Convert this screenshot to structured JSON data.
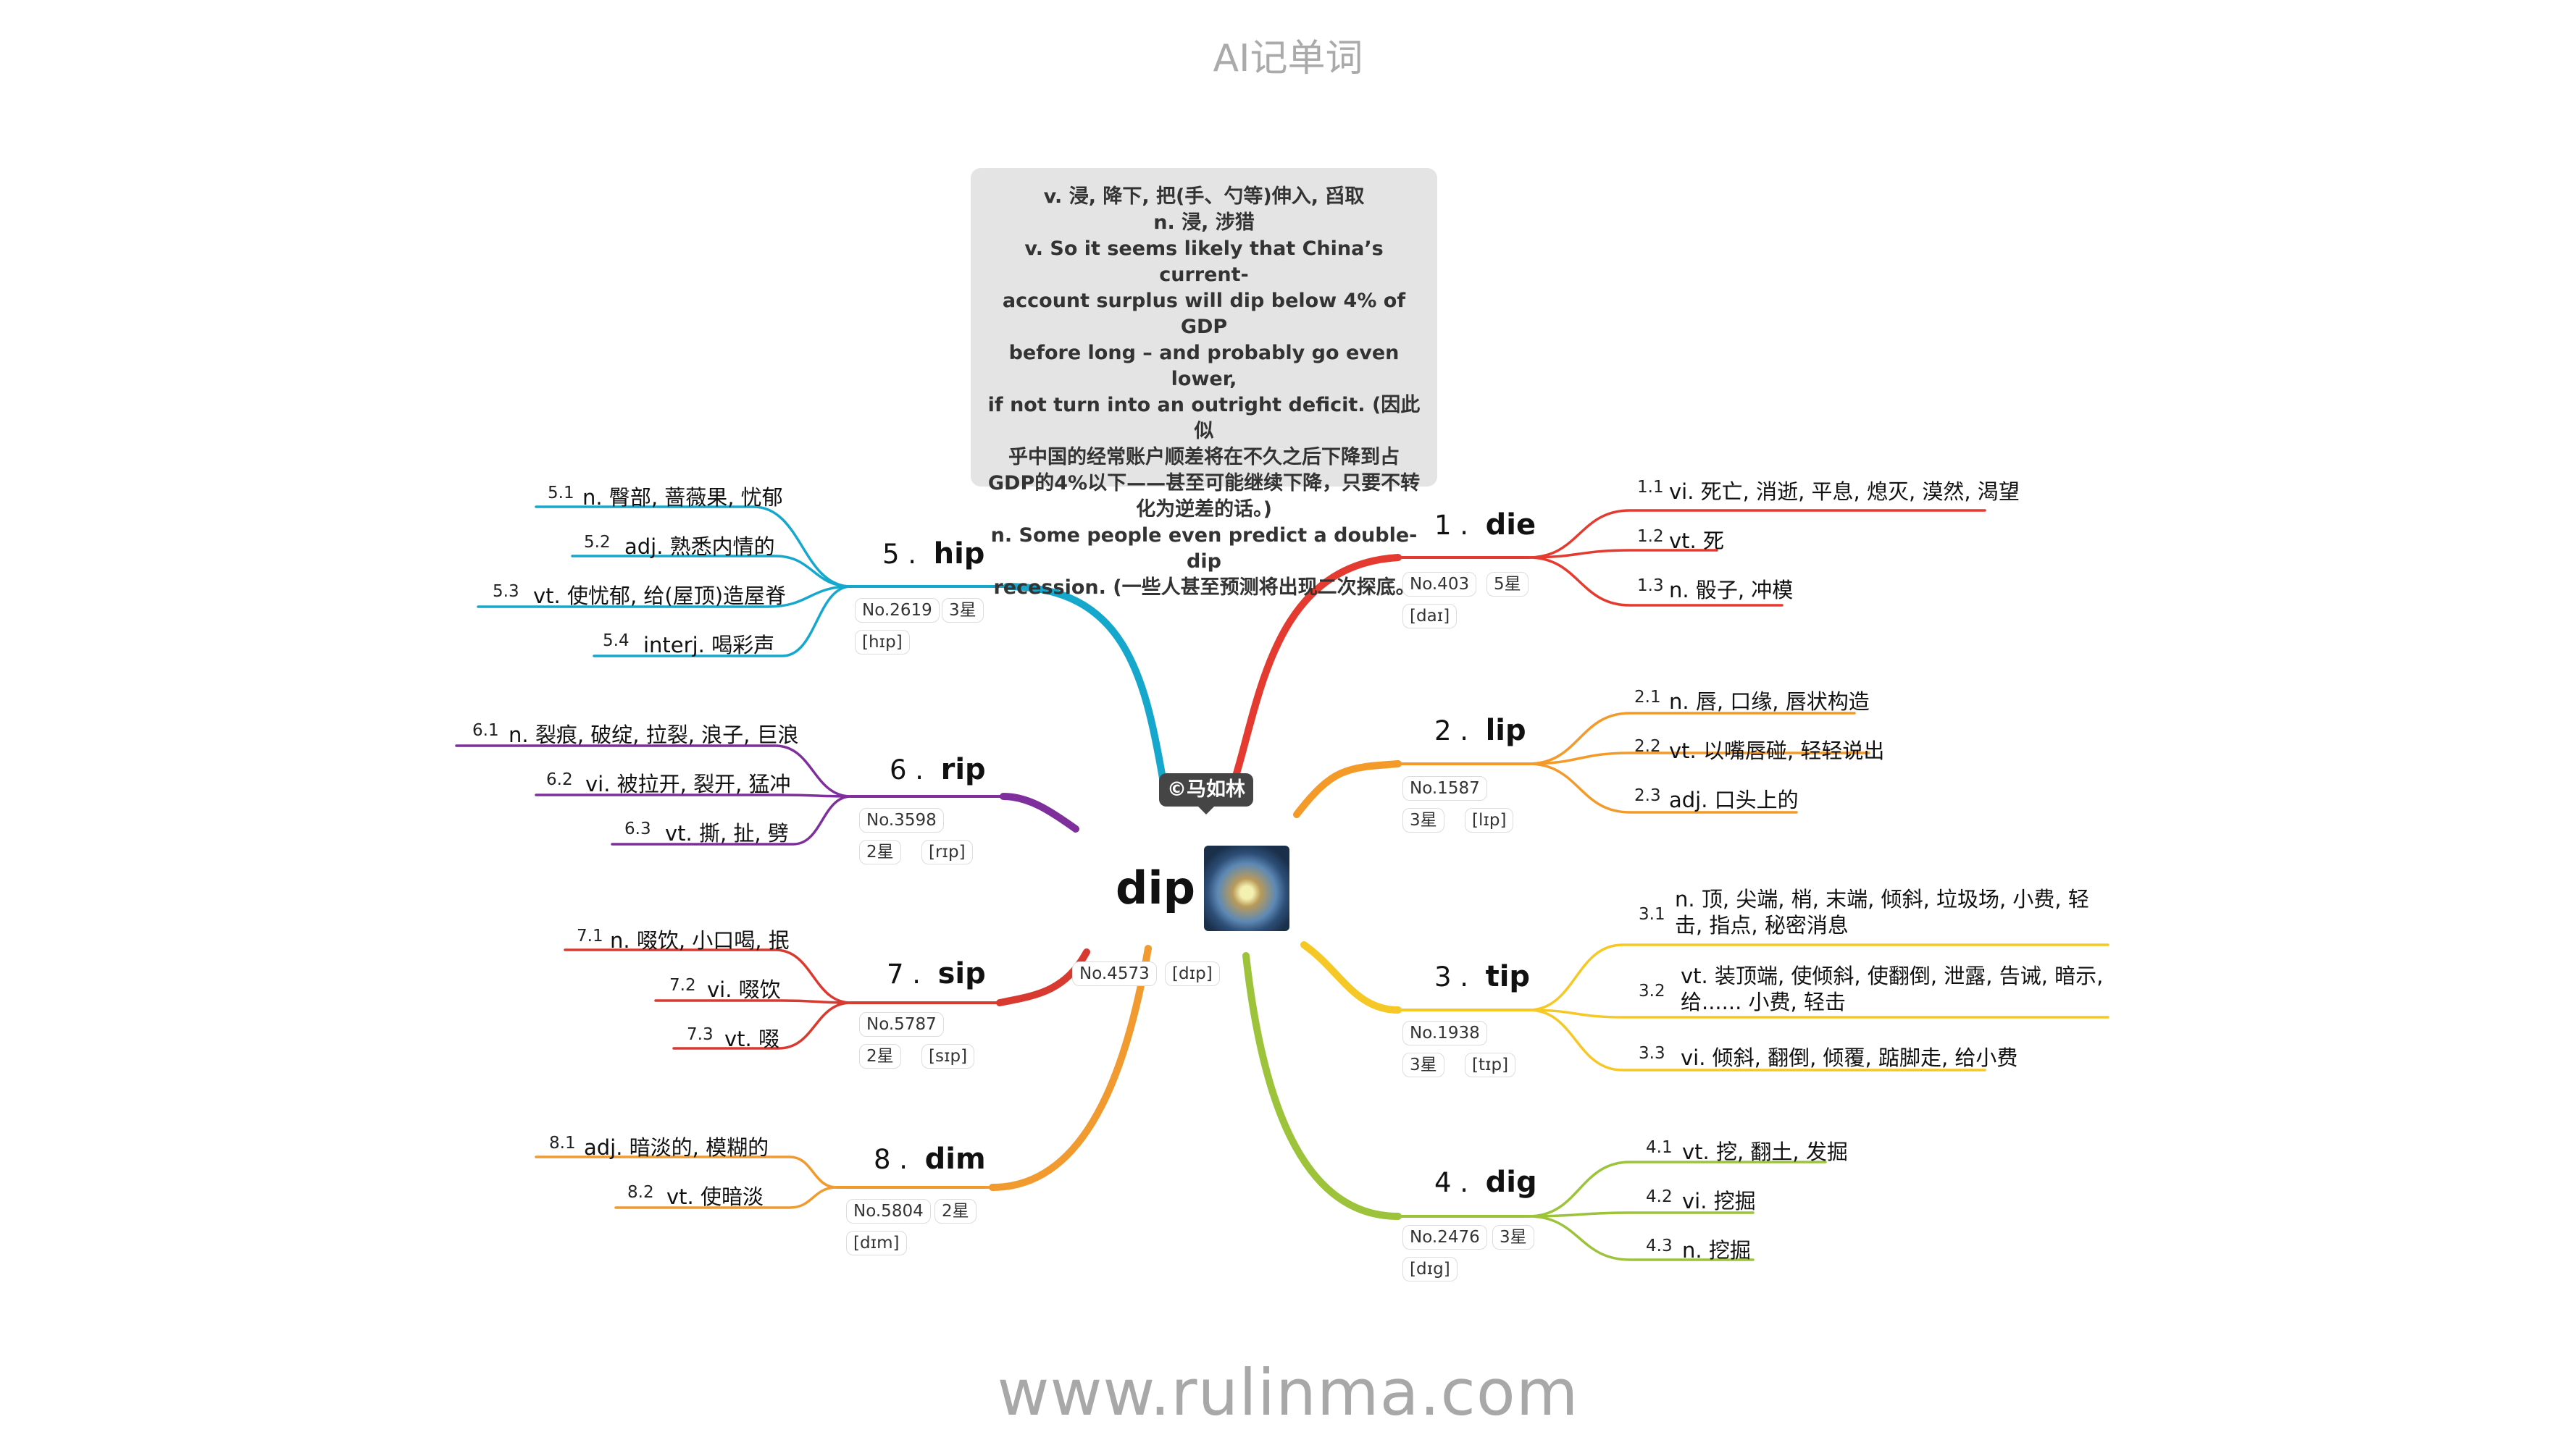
{
  "app_title": "AI记单词",
  "footer": "www.rulinma.com",
  "center": {
    "word": "dip",
    "author_badge": "©马如林",
    "no": "No.4573",
    "phonetic": "[dɪp]",
    "definition_lines": [
      "v. 浸, 降下, 把(手、勺等)伸入, 舀取",
      "n. 浸, 涉猎",
      "v. So it seems likely that China’s current-",
      "account surplus will dip below 4% of GDP",
      "before long – and probably go even lower,",
      "if not turn into an outright deficit. (因此似",
      "乎中国的经常账户顺差将在不久之后下降到占",
      "GDP的4%以下——甚至可能继续下降，只要不转",
      "化为逆差的话。)",
      "n. Some people even predict a double-dip",
      "recession. (一些人甚至预测将出现二次探底。)"
    ]
  },
  "branches": [
    {
      "index": "1",
      "word": "die",
      "no": "No.403",
      "stars": "5星",
      "phonetic": "[daɪ]",
      "color": "#e53a2f",
      "meanings": [
        {
          "num": "1.1",
          "text": "vi. 死亡, 消逝, 平息, 熄灭, 漠然, 渴望"
        },
        {
          "num": "1.2",
          "text": "vt. 死"
        },
        {
          "num": "1.3",
          "text": "n. 骰子, 冲模"
        }
      ]
    },
    {
      "index": "2",
      "word": "lip",
      "no": "No.1587",
      "stars": "3星",
      "phonetic": "[lɪp]",
      "color": "#f39a28",
      "meanings": [
        {
          "num": "2.1",
          "text": "n. 唇, 口缘, 唇状构造"
        },
        {
          "num": "2.2",
          "text": "vt. 以嘴唇碰, 轻轻说出"
        },
        {
          "num": "2.3",
          "text": "adj. 口头上的"
        }
      ]
    },
    {
      "index": "3",
      "word": "tip",
      "no": "No.1938",
      "stars": "3星",
      "phonetic": "[tɪp]",
      "color": "#f5c825",
      "meanings": [
        {
          "num": "3.1",
          "text": "n. 顶, 尖端, 梢, 末端, 倾斜, 垃圾场, 小费, 轻击, 指点, 秘密消息"
        },
        {
          "num": "3.2",
          "text": "vt. 装顶端, 使倾斜, 使翻倒, 泄露, 告诫, 暗示, 给...... 小费, 轻击"
        },
        {
          "num": "3.3",
          "text": "vi. 倾斜, 翻倒, 倾覆, 踮脚走, 给小费"
        }
      ]
    },
    {
      "index": "4",
      "word": "dig",
      "no": "No.2476",
      "stars": "3星",
      "phonetic": "[dɪg]",
      "color": "#9cc33a",
      "meanings": [
        {
          "num": "4.1",
          "text": "vt. 挖, 翻土, 发掘"
        },
        {
          "num": "4.2",
          "text": "vi. 挖掘"
        },
        {
          "num": "4.3",
          "text": "n. 挖掘"
        }
      ]
    },
    {
      "index": "5",
      "word": "hip",
      "no": "No.2619",
      "stars": "3星",
      "phonetic": "[hɪp]",
      "color": "#16a8cc",
      "meanings": [
        {
          "num": "5.1",
          "text": "n. 臀部, 蔷薇果, 忧郁"
        },
        {
          "num": "5.2",
          "text": "adj. 熟悉内情的"
        },
        {
          "num": "5.3",
          "text": "vt. 使忧郁, 给(屋顶)造屋脊"
        },
        {
          "num": "5.4",
          "text": "interj. 喝彩声"
        }
      ]
    },
    {
      "index": "6",
      "word": "rip",
      "no": "No.3598",
      "stars": "2星",
      "phonetic": "[rɪp]",
      "color": "#7f2f9c",
      "meanings": [
        {
          "num": "6.1",
          "text": "n. 裂痕, 破绽, 拉裂, 浪子, 巨浪"
        },
        {
          "num": "6.2",
          "text": "vi. 被拉开, 裂开, 猛冲"
        },
        {
          "num": "6.3",
          "text": "vt. 撕, 扯, 劈"
        }
      ]
    },
    {
      "index": "7",
      "word": "sip",
      "no": "No.5787",
      "stars": "2星",
      "phonetic": "[sɪp]",
      "color": "#d93a30",
      "meanings": [
        {
          "num": "7.1",
          "text": "n. 啜饮, 小口喝, 抿"
        },
        {
          "num": "7.2",
          "text": "vi. 啜饮"
        },
        {
          "num": "7.3",
          "text": "vt. 啜"
        }
      ]
    },
    {
      "index": "8",
      "word": "dim",
      "no": "No.5804",
      "stars": "2星",
      "phonetic": "[dɪm]",
      "color": "#f09a30",
      "meanings": [
        {
          "num": "8.1",
          "text": "adj. 暗淡的, 模糊的"
        },
        {
          "num": "8.2",
          "text": "vt. 使暗淡"
        }
      ]
    }
  ]
}
